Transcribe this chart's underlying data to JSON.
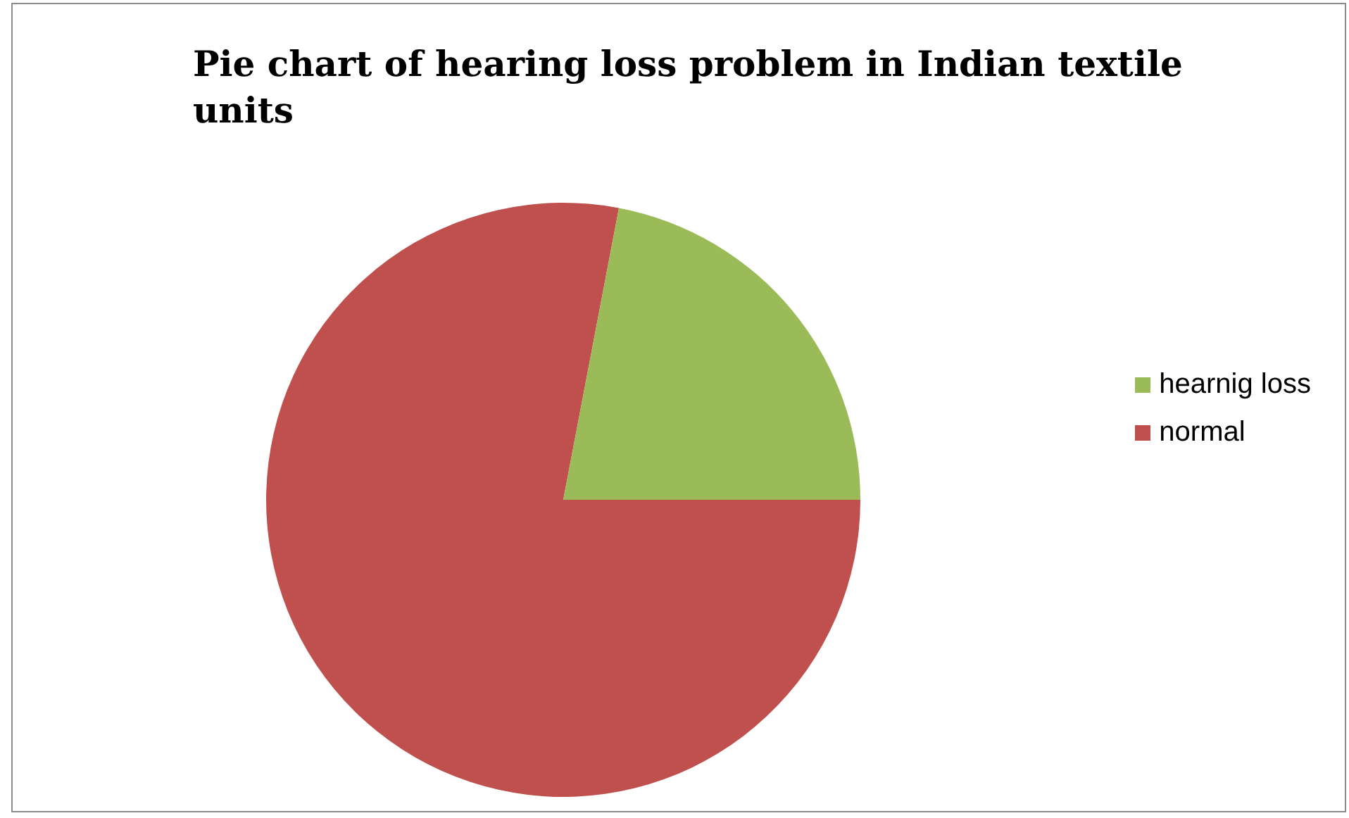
{
  "chart_data": {
    "type": "pie",
    "title": "Pie chart of hearing loss problem in Indian textile units",
    "categories": [
      "normal",
      "hearnig loss"
    ],
    "values": [
      78,
      22
    ],
    "colors": [
      "#c0504d",
      "#9bbb59"
    ],
    "legend": "right"
  }
}
